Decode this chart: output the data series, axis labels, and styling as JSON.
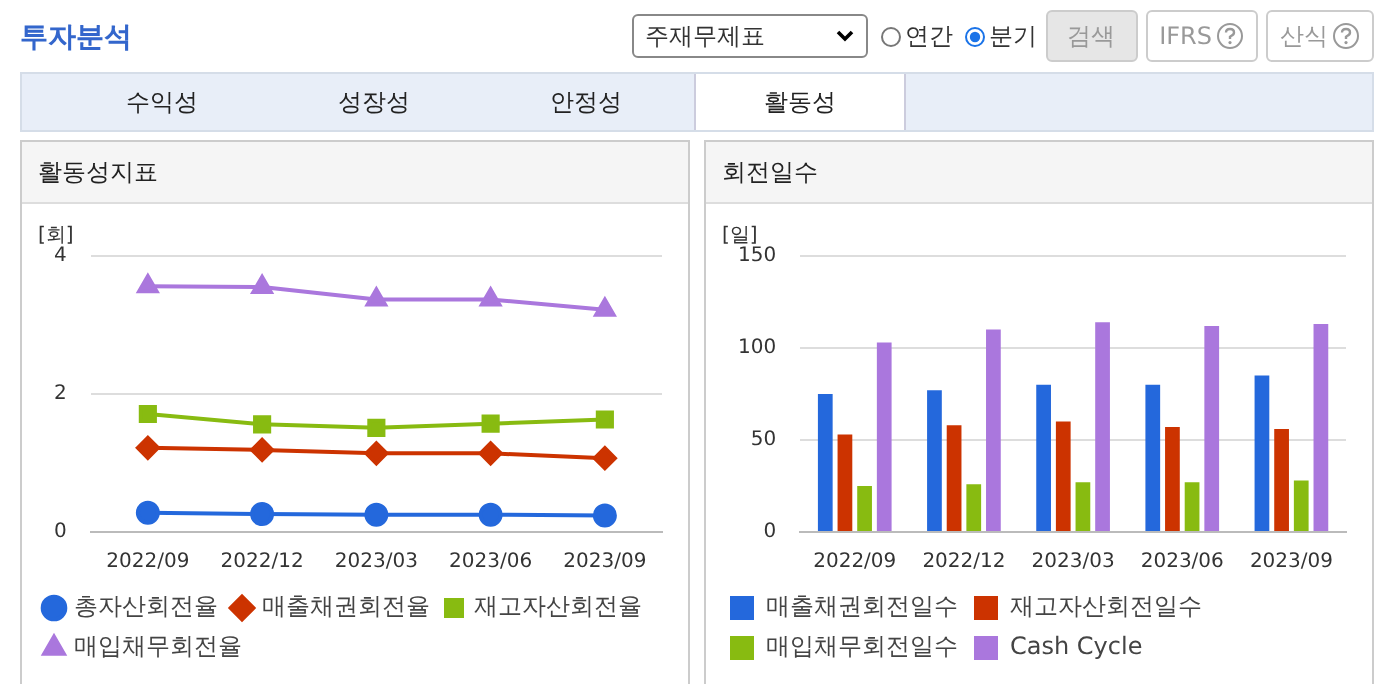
{
  "chart_data": [
    {
      "type": "other",
      "title": "투자분석",
      "annotations": [
        "주재무제표",
        "연간",
        "분기",
        "검색",
        "IFRS",
        "산식",
        "수익성",
        "성장성",
        "안정성",
        "활동성"
      ]
    },
    {
      "type": "line",
      "title": "활동성지표",
      "ylabel": "[회]",
      "categories": [
        "2022/09",
        "2022/12",
        "2023/03",
        "2023/06",
        "2023/09"
      ],
      "ylim": [
        0,
        4
      ],
      "yticks": [
        0,
        2,
        4
      ],
      "grid": "y",
      "legend": "bottom",
      "series": [
        {
          "name": "총자산회전율",
          "color": "#2468dc",
          "marker": "circle",
          "values": [
            0.28,
            0.26,
            0.25,
            0.25,
            0.24
          ]
        },
        {
          "name": "매출채권회전율",
          "color": "#cc3300",
          "marker": "diamond",
          "values": [
            1.22,
            1.19,
            1.14,
            1.14,
            1.07
          ]
        },
        {
          "name": "재고자산회전율",
          "color": "#88bb11",
          "marker": "square",
          "values": [
            1.71,
            1.56,
            1.51,
            1.57,
            1.63
          ]
        },
        {
          "name": "매입채무회전율",
          "color": "#aa77dd",
          "marker": "triangle",
          "values": [
            3.56,
            3.55,
            3.37,
            3.37,
            3.22
          ]
        }
      ]
    },
    {
      "type": "bar",
      "title": "회전일수",
      "ylabel": "[일]",
      "categories": [
        "2022/09",
        "2022/12",
        "2023/03",
        "2023/06",
        "2023/09"
      ],
      "ylim": [
        0,
        150
      ],
      "yticks": [
        0,
        50,
        100,
        150
      ],
      "grid": "y",
      "legend": "bottom",
      "series": [
        {
          "name": "매출채권회전일수",
          "color": "#2468dc",
          "values": [
            75,
            77,
            80,
            80,
            85
          ]
        },
        {
          "name": "재고자산회전일수",
          "color": "#cc3300",
          "values": [
            53,
            58,
            60,
            57,
            56
          ]
        },
        {
          "name": "매입채무회전일수",
          "color": "#88bb11",
          "values": [
            25,
            26,
            27,
            27,
            28
          ]
        },
        {
          "name": "Cash Cycle",
          "color": "#aa77dd",
          "values": [
            103,
            110,
            114,
            112,
            113
          ]
        }
      ]
    }
  ]
}
